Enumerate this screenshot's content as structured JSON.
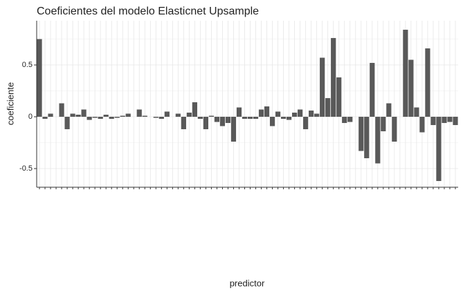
{
  "chart_data": {
    "type": "bar",
    "title": "Coeficientes del modelo Elasticnet Upsample",
    "x_label": "predictor",
    "y_label": "coeficiente",
    "color": "#595959",
    "grid": true,
    "ylim": [
      -0.68,
      0.927
    ],
    "yticks": [
      -0.5,
      0.0,
      0.5
    ],
    "yminorticks": [
      -0.25,
      0.25,
      0.75
    ],
    "categories": [
      null,
      null,
      null,
      null,
      null,
      null,
      null,
      null,
      null,
      null,
      null,
      null,
      null,
      null,
      null,
      null,
      null,
      null,
      null,
      null,
      null,
      null,
      null,
      null,
      null,
      null,
      null,
      null,
      null,
      null,
      null,
      null,
      null,
      null,
      null,
      null,
      null,
      null,
      null,
      null,
      null,
      null,
      null,
      null,
      null,
      null,
      null,
      null,
      null,
      null,
      null,
      null,
      null,
      null,
      null,
      null,
      null,
      null,
      null,
      null,
      null,
      null,
      null,
      null,
      null,
      null,
      null,
      null,
      null,
      null,
      null,
      null,
      null,
      null,
      null,
      null
    ],
    "values": [
      0.75,
      -0.02,
      0.03,
      0.0,
      0.13,
      -0.12,
      0.03,
      0.02,
      0.07,
      -0.03,
      -0.01,
      -0.02,
      0.02,
      -0.02,
      -0.01,
      0.01,
      0.03,
      0.0,
      0.07,
      0.01,
      0.0,
      -0.01,
      -0.02,
      0.05,
      0.0,
      0.03,
      -0.12,
      0.04,
      0.14,
      -0.02,
      -0.12,
      0.01,
      -0.05,
      -0.09,
      -0.06,
      -0.24,
      0.09,
      -0.02,
      -0.02,
      -0.02,
      0.07,
      0.1,
      -0.09,
      0.05,
      -0.02,
      -0.03,
      0.04,
      0.07,
      -0.12,
      0.06,
      0.03,
      0.57,
      0.18,
      0.76,
      0.38,
      -0.06,
      -0.05,
      0.0,
      -0.33,
      -0.4,
      0.52,
      -0.45,
      -0.14,
      0.13,
      -0.24,
      0.0,
      0.84,
      0.55,
      0.09,
      -0.15,
      0.66,
      -0.08,
      -0.62,
      -0.06,
      -0.05,
      -0.08
    ]
  }
}
